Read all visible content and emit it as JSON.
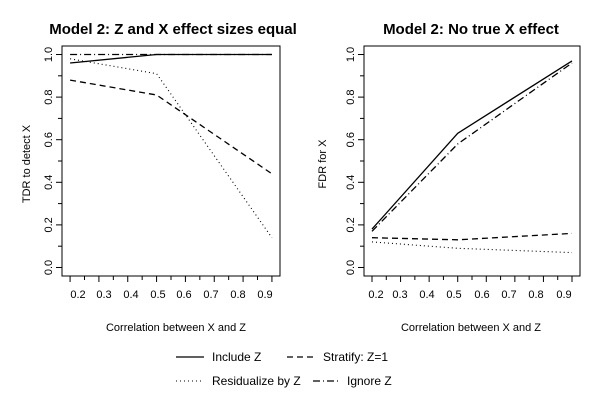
{
  "chart_data": [
    {
      "type": "line",
      "title": "Model 2: Z and X effect sizes equal",
      "xlabel": "Correlation between X and Z",
      "ylabel": "TDR to detect X",
      "xlim": [
        0.2,
        0.9
      ],
      "ylim": [
        0.0,
        1.0
      ],
      "xticks": [
        "0.2",
        "0.3",
        "0.4",
        "0.5",
        "0.6",
        "0.7",
        "0.8",
        "0.9"
      ],
      "yticks": [
        "0.0",
        "0.2",
        "0.4",
        "0.6",
        "0.8",
        "1.0"
      ],
      "x": [
        0.2,
        0.5,
        0.9
      ],
      "series": [
        {
          "name": "Include Z",
          "style": "solid",
          "values": [
            0.96,
            1.0,
            1.0
          ]
        },
        {
          "name": "Stratify: Z=1",
          "style": "dashed",
          "values": [
            0.88,
            0.81,
            0.44
          ]
        },
        {
          "name": "Residualize by Z",
          "style": "dotted",
          "values": [
            0.98,
            0.91,
            0.14
          ]
        },
        {
          "name": "Ignore Z",
          "style": "dashdot",
          "values": [
            1.0,
            1.0,
            1.0
          ]
        }
      ]
    },
    {
      "type": "line",
      "title": "Model 2: No true X effect",
      "xlabel": "Correlation between X and Z",
      "ylabel": "FDR for X",
      "xlim": [
        0.2,
        0.9
      ],
      "ylim": [
        0.0,
        1.0
      ],
      "xticks": [
        "0.2",
        "0.3",
        "0.4",
        "0.5",
        "0.6",
        "0.7",
        "0.8",
        "0.9"
      ],
      "yticks": [
        "0.0",
        "0.2",
        "0.4",
        "0.6",
        "0.8",
        "1.0"
      ],
      "x": [
        0.2,
        0.5,
        0.9
      ],
      "series": [
        {
          "name": "Include Z",
          "style": "solid",
          "values": [
            0.18,
            0.63,
            0.97
          ]
        },
        {
          "name": "Stratify: Z=1",
          "style": "dashed",
          "values": [
            0.14,
            0.13,
            0.16
          ]
        },
        {
          "name": "Residualize by Z",
          "style": "dotted",
          "values": [
            0.12,
            0.09,
            0.07
          ]
        },
        {
          "name": "Ignore Z",
          "style": "dashdot",
          "values": [
            0.17,
            0.58,
            0.96
          ]
        }
      ]
    }
  ],
  "legend": {
    "entries": [
      {
        "label": "Include Z",
        "style": "solid"
      },
      {
        "label": "Stratify: Z=1",
        "style": "dashed"
      },
      {
        "label": "Residualize by Z",
        "style": "dotted"
      },
      {
        "label": "Ignore Z",
        "style": "dashdot"
      }
    ]
  },
  "colors": {
    "line": "#000000",
    "background": "#ffffff"
  }
}
